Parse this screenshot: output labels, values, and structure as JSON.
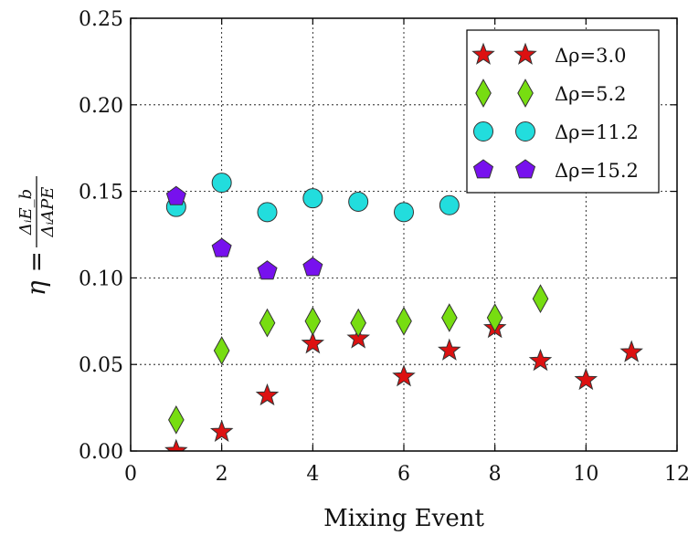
{
  "chart_data": {
    "type": "scatter",
    "title": "",
    "xlabel": "Mixing Event",
    "ylabel": {
      "prefix": "η = ",
      "numerator": "ΔᵢE_b",
      "denominator": "ΔᵢAPE"
    },
    "xlim": [
      0,
      12
    ],
    "ylim": [
      0,
      0.25
    ],
    "xticks": [
      "0",
      "2",
      "4",
      "6",
      "8",
      "10",
      "12"
    ],
    "yticks": [
      "0.00",
      "0.05",
      "0.10",
      "0.15",
      "0.20",
      "0.25"
    ],
    "grid": true,
    "legend_position": "top-right",
    "series": [
      {
        "name": "Δρ=3.0",
        "marker": "star",
        "color": "#dd1111",
        "x": [
          1,
          2,
          3,
          4,
          5,
          6,
          7,
          8,
          9,
          10,
          11
        ],
        "y": [
          0.0,
          0.011,
          0.032,
          0.062,
          0.065,
          0.043,
          0.058,
          0.071,
          0.052,
          0.041,
          0.057
        ]
      },
      {
        "name": "Δρ=5.2",
        "marker": "diamond",
        "color": "#77dd11",
        "x": [
          1,
          2,
          3,
          4,
          5,
          6,
          7,
          8,
          9
        ],
        "y": [
          0.018,
          0.058,
          0.074,
          0.075,
          0.074,
          0.075,
          0.077,
          0.077,
          0.088
        ]
      },
      {
        "name": "Δρ=11.2",
        "marker": "circle",
        "color": "#22dddd",
        "x": [
          1,
          2,
          3,
          4,
          5,
          6,
          7
        ],
        "y": [
          0.141,
          0.155,
          0.138,
          0.146,
          0.144,
          0.138,
          0.142
        ]
      },
      {
        "name": "Δρ=15.2",
        "marker": "pentagon",
        "color": "#7711ee",
        "x": [
          1,
          2,
          3,
          4
        ],
        "y": [
          0.147,
          0.117,
          0.104,
          0.106
        ]
      }
    ]
  }
}
